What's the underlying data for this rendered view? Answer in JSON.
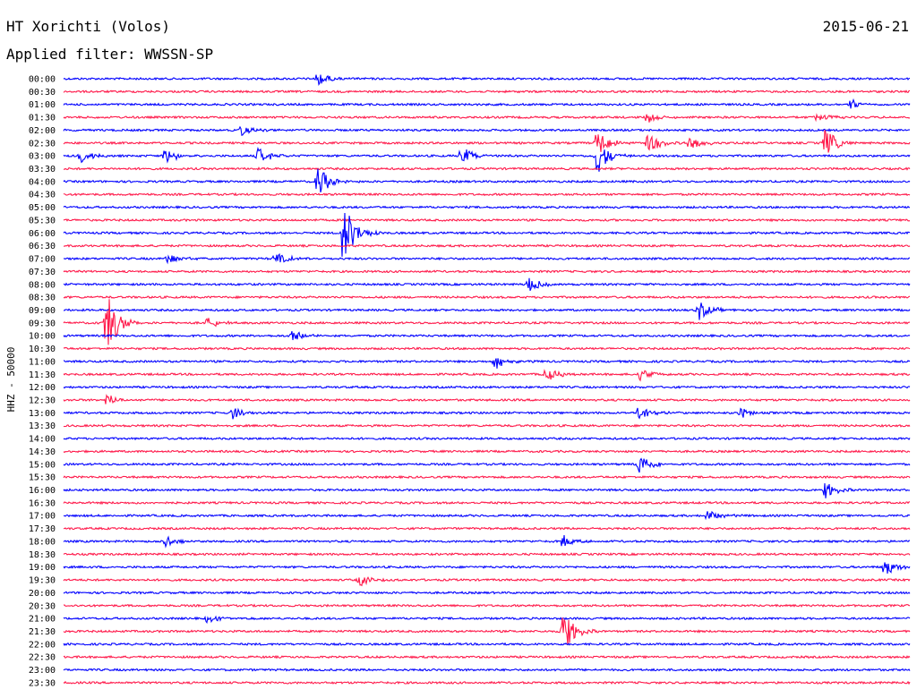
{
  "header": {
    "station": "HT Xorichti (Volos)",
    "date": "2015-06-21",
    "filter": "Applied filter: WWSSN-SP"
  },
  "chart_data": {
    "type": "line",
    "ylabel": "HHZ - 50000",
    "series_colors": [
      "#0000ff",
      "#ff1a4b"
    ],
    "rows": [
      "00:00",
      "00:30",
      "01:00",
      "01:30",
      "02:00",
      "02:30",
      "03:00",
      "03:30",
      "04:00",
      "04:30",
      "05:00",
      "05:30",
      "06:00",
      "06:30",
      "07:00",
      "07:30",
      "08:00",
      "08:30",
      "09:00",
      "09:30",
      "10:00",
      "10:30",
      "11:00",
      "11:30",
      "12:00",
      "12:30",
      "13:00",
      "13:30",
      "14:00",
      "14:30",
      "15:00",
      "15:30",
      "16:00",
      "16:30",
      "17:00",
      "17:30",
      "18:00",
      "18:30",
      "19:00",
      "19:30",
      "20:00",
      "20:30",
      "21:00",
      "21:30",
      "22:00",
      "22:30",
      "23:00",
      "23:30"
    ],
    "events": [
      {
        "row": 0,
        "pos": 0.3,
        "amp": 0.6
      },
      {
        "row": 2,
        "pos": 0.93,
        "amp": 0.4
      },
      {
        "row": 3,
        "pos": 0.69,
        "amp": 0.5
      },
      {
        "row": 3,
        "pos": 0.89,
        "amp": 0.4
      },
      {
        "row": 4,
        "pos": 0.21,
        "amp": 0.5
      },
      {
        "row": 5,
        "pos": 0.63,
        "amp": 1.2
      },
      {
        "row": 5,
        "pos": 0.69,
        "amp": 1.0
      },
      {
        "row": 5,
        "pos": 0.74,
        "amp": 0.6
      },
      {
        "row": 5,
        "pos": 0.9,
        "amp": 1.2
      },
      {
        "row": 6,
        "pos": 0.02,
        "amp": 0.6
      },
      {
        "row": 6,
        "pos": 0.12,
        "amp": 0.7
      },
      {
        "row": 6,
        "pos": 0.23,
        "amp": 0.7
      },
      {
        "row": 6,
        "pos": 0.47,
        "amp": 0.8
      },
      {
        "row": 6,
        "pos": 0.63,
        "amp": 1.5
      },
      {
        "row": 8,
        "pos": 0.3,
        "amp": 1.3
      },
      {
        "row": 12,
        "pos": 0.33,
        "amp": 2.6
      },
      {
        "row": 14,
        "pos": 0.12,
        "amp": 0.5
      },
      {
        "row": 14,
        "pos": 0.25,
        "amp": 0.6
      },
      {
        "row": 16,
        "pos": 0.55,
        "amp": 0.6
      },
      {
        "row": 18,
        "pos": 0.75,
        "amp": 0.8
      },
      {
        "row": 19,
        "pos": 0.05,
        "amp": 2.6
      },
      {
        "row": 19,
        "pos": 0.17,
        "amp": 0.5
      },
      {
        "row": 20,
        "pos": 0.27,
        "amp": 0.5
      },
      {
        "row": 22,
        "pos": 0.51,
        "amp": 0.7
      },
      {
        "row": 23,
        "pos": 0.57,
        "amp": 0.6
      },
      {
        "row": 23,
        "pos": 0.68,
        "amp": 0.5
      },
      {
        "row": 25,
        "pos": 0.05,
        "amp": 0.5
      },
      {
        "row": 26,
        "pos": 0.2,
        "amp": 0.5
      },
      {
        "row": 26,
        "pos": 0.68,
        "amp": 0.7
      },
      {
        "row": 26,
        "pos": 0.8,
        "amp": 0.4
      },
      {
        "row": 30,
        "pos": 0.68,
        "amp": 1.0
      },
      {
        "row": 32,
        "pos": 0.9,
        "amp": 0.7
      },
      {
        "row": 34,
        "pos": 0.76,
        "amp": 0.5
      },
      {
        "row": 36,
        "pos": 0.12,
        "amp": 0.5
      },
      {
        "row": 36,
        "pos": 0.59,
        "amp": 0.5
      },
      {
        "row": 38,
        "pos": 0.97,
        "amp": 0.7
      },
      {
        "row": 39,
        "pos": 0.35,
        "amp": 0.5
      },
      {
        "row": 42,
        "pos": 0.17,
        "amp": 0.4
      },
      {
        "row": 43,
        "pos": 0.59,
        "amp": 1.8
      }
    ]
  }
}
